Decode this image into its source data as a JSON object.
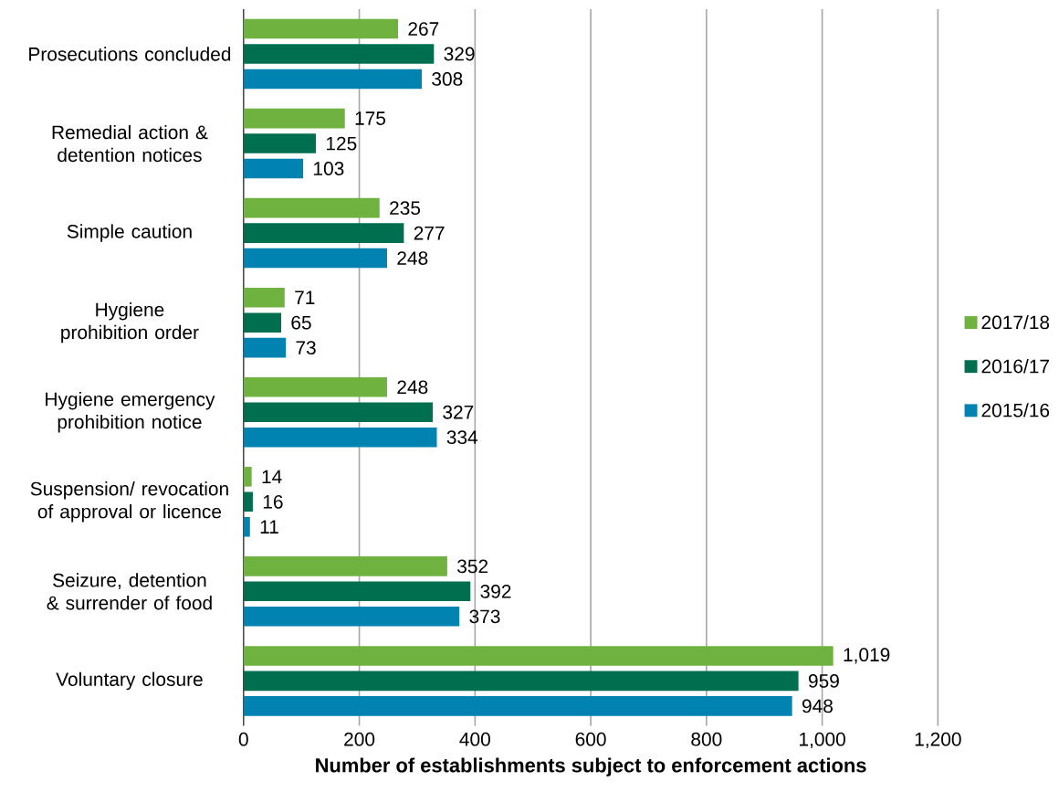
{
  "chart_data": {
    "type": "bar",
    "orientation": "horizontal",
    "categories": [
      "Prosecutions concluded",
      "Remedial action & detention notices",
      "Simple caution",
      "Hygiene prohibition order",
      "Hygiene emergency prohibition notice",
      "Suspension/ revocation of approval or licence",
      "Seizure, detention & surrender of food",
      "Voluntary closure"
    ],
    "series": [
      {
        "name": "2017/18",
        "color": "#70b23f",
        "values": [
          267,
          175,
          235,
          71,
          248,
          14,
          352,
          1019
        ],
        "value_labels": [
          "267",
          "175",
          "235",
          "71",
          "248",
          "14",
          "352",
          "1,019"
        ]
      },
      {
        "name": "2016/17",
        "color": "#006f4f",
        "values": [
          329,
          125,
          277,
          65,
          327,
          16,
          392,
          959
        ],
        "value_labels": [
          "329",
          "125",
          "277",
          "65",
          "327",
          "16",
          "392",
          "959"
        ]
      },
      {
        "name": "2015/16",
        "color": "#0083b0",
        "values": [
          308,
          103,
          248,
          73,
          334,
          11,
          373,
          948
        ],
        "value_labels": [
          "308",
          "103",
          "248",
          "73",
          "334",
          "11",
          "373",
          "948"
        ]
      }
    ],
    "xlim": [
      0,
      1200
    ],
    "xticks": [
      0,
      200,
      400,
      600,
      800,
      {
        "value": 1000,
        "label": "1,000"
      },
      {
        "value": 1200,
        "label": "1,200"
      }
    ],
    "xlabel": "Number of establishments subject to enforcement actions",
    "grid": "x",
    "legend": "right"
  }
}
